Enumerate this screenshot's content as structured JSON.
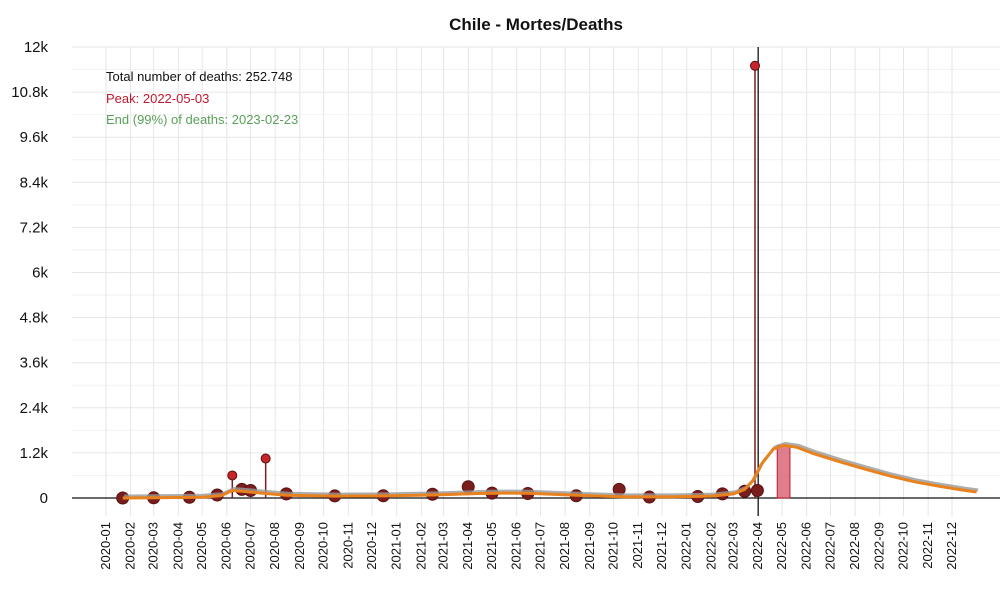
{
  "chart_data": {
    "type": "line",
    "title": "Chile - Mortes/Deaths",
    "xlabel": "",
    "ylabel": "",
    "ylim": [
      0,
      12000
    ],
    "yticks": [
      0,
      1200,
      2400,
      3600,
      4800,
      6000,
      7200,
      8400,
      9600,
      10800,
      12000
    ],
    "ytick_labels": [
      "0",
      "1.2k",
      "2.4k",
      "3.6k",
      "4.8k",
      "6k",
      "7.2k",
      "8.4k",
      "9.6k",
      "10.8k",
      "12k"
    ],
    "xlim": [
      "2020-01-01",
      "2023-01-01"
    ],
    "xtick_labels": [
      "2020-01",
      "2020-02",
      "2020-03",
      "2020-04",
      "2020-05",
      "2020-06",
      "2020-07",
      "2020-08",
      "2020-09",
      "2020-10",
      "2020-11",
      "2020-12",
      "2021-01",
      "2021-02",
      "2021-03",
      "2021-04",
      "2021-05",
      "2021-06",
      "2021-07",
      "2021-08",
      "2021-09",
      "2021-10",
      "2021-11",
      "2021-12",
      "2022-01",
      "2022-02",
      "2022-03",
      "2022-04",
      "2022-05",
      "2022-06",
      "2022-07",
      "2022-08",
      "2022-09",
      "2022-10",
      "2022-11",
      "2022-12"
    ],
    "grid": true,
    "annotations": {
      "total": "Total number of deaths: 252.748",
      "peak": "Peak: 2022-05-03",
      "end": "End (99%) of deaths: 2023-02-23"
    },
    "vertical_line_date": "2022-04-01",
    "peak_band": [
      "2022-04-25",
      "2022-05-11"
    ],
    "daily_deaths": [
      {
        "date": "2020-01-22",
        "value": 0
      },
      {
        "date": "2020-03-01",
        "value": 5
      },
      {
        "date": "2020-04-15",
        "value": 20
      },
      {
        "date": "2020-05-20",
        "value": 80
      },
      {
        "date": "2020-06-08",
        "value": 600
      },
      {
        "date": "2020-06-20",
        "value": 230
      },
      {
        "date": "2020-07-01",
        "value": 200
      },
      {
        "date": "2020-07-20",
        "value": 1050
      },
      {
        "date": "2020-08-15",
        "value": 110
      },
      {
        "date": "2020-10-15",
        "value": 55
      },
      {
        "date": "2020-12-15",
        "value": 60
      },
      {
        "date": "2021-02-15",
        "value": 100
      },
      {
        "date": "2021-04-01",
        "value": 300
      },
      {
        "date": "2021-05-01",
        "value": 130
      },
      {
        "date": "2021-06-15",
        "value": 120
      },
      {
        "date": "2021-08-15",
        "value": 60
      },
      {
        "date": "2021-10-08",
        "value": 230
      },
      {
        "date": "2021-11-15",
        "value": 25
      },
      {
        "date": "2022-01-15",
        "value": 40
      },
      {
        "date": "2022-02-15",
        "value": 110
      },
      {
        "date": "2022-03-15",
        "value": 180
      },
      {
        "date": "2022-03-28",
        "value": 11500
      },
      {
        "date": "2022-03-31",
        "value": 200
      }
    ],
    "series": [
      {
        "name": "",
        "color": "#e8821e",
        "x": [
          "2020-01-22",
          "2020-03-01",
          "2020-05-01",
          "2020-05-25",
          "2020-06-08",
          "2020-06-20",
          "2020-07-15",
          "2020-08-15",
          "2020-10-15",
          "2020-12-15",
          "2021-02-15",
          "2021-04-15",
          "2021-05-15",
          "2021-06-15",
          "2021-07-15",
          "2021-09-01",
          "2021-10-15",
          "2021-12-15",
          "2022-02-01",
          "2022-03-01",
          "2022-03-15",
          "2022-03-25",
          "2022-04-05",
          "2022-04-20",
          "2022-05-03",
          "2022-05-20",
          "2022-06-10",
          "2022-07-15",
          "2022-08-15",
          "2022-09-15",
          "2022-10-15",
          "2022-11-15",
          "2022-12-15",
          "2023-01-01"
        ],
        "y": [
          0,
          5,
          20,
          60,
          200,
          180,
          130,
          75,
          50,
          55,
          80,
          120,
          130,
          125,
          100,
          60,
          30,
          30,
          50,
          110,
          230,
          450,
          900,
          1300,
          1400,
          1350,
          1180,
          950,
          760,
          580,
          430,
          310,
          210,
          160
        ]
      }
    ],
    "colors": {
      "points": "#7a1d1d",
      "spike_points": "#c8252a",
      "fit_line": "#e8821e",
      "fit_shadow": "#999999",
      "peak_band": "#d9687a",
      "peak_text": "#c0182e",
      "end_text": "#5aa05a",
      "total_text": "#111111"
    }
  }
}
